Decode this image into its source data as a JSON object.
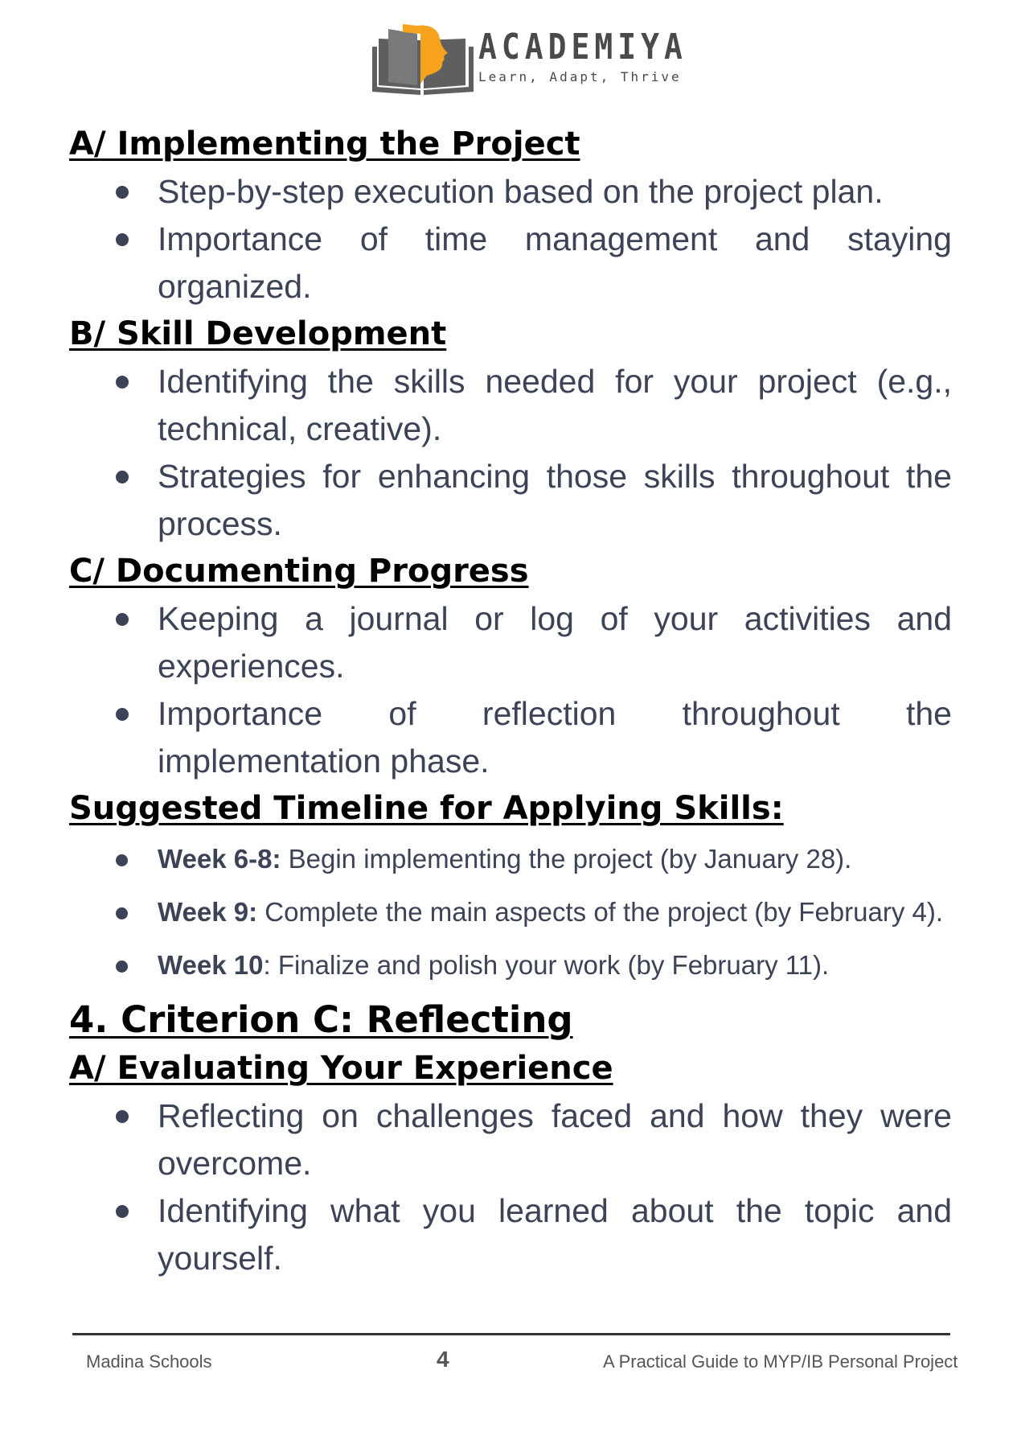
{
  "header": {
    "brand_name": "ACADEMIYA",
    "tagline": "Learn, Adapt, Thrive",
    "colors": {
      "book": "#5f5f5f",
      "accent": "#f7a21c"
    }
  },
  "sections": [
    {
      "heading": "A/ Implementing the Project",
      "bullets": [
        "Step-by-step execution based on the project plan.",
        "Importance of time management and staying organized."
      ]
    },
    {
      "heading": "B/ Skill Development",
      "bullets": [
        "Identifying the skills needed for your project (e.g., technical, creative).",
        "Strategies for enhancing those skills throughout the process."
      ]
    },
    {
      "heading": "C/ Documenting Progress",
      "bullets": [
        "Keeping a journal or log of your activities and experiences.",
        "Importance of reflection throughout the implementation phase."
      ]
    }
  ],
  "timeline": {
    "heading": "Suggested Timeline for Applying Skills:",
    "items": [
      {
        "label": "Week 6-8:",
        "text": " Begin implementing the project (by January 28)."
      },
      {
        "label": "Week 9:",
        "text": " Complete the main aspects of the project (by February 4)."
      },
      {
        "label": "Week 10",
        "text": ": Finalize and polish your work (by February 11)."
      }
    ]
  },
  "criterion": {
    "heading": "4. Criterion C: Reflecting",
    "sub_heading": "A/ Evaluating Your Experience",
    "bullets": [
      "Reflecting on challenges faced and how they were overcome.",
      "Identifying what you learned about the topic and yourself."
    ]
  },
  "footer": {
    "left": "Madina Schools",
    "page_number": "4",
    "right": "A Practical Guide to MYP/IB  Personal Project"
  }
}
